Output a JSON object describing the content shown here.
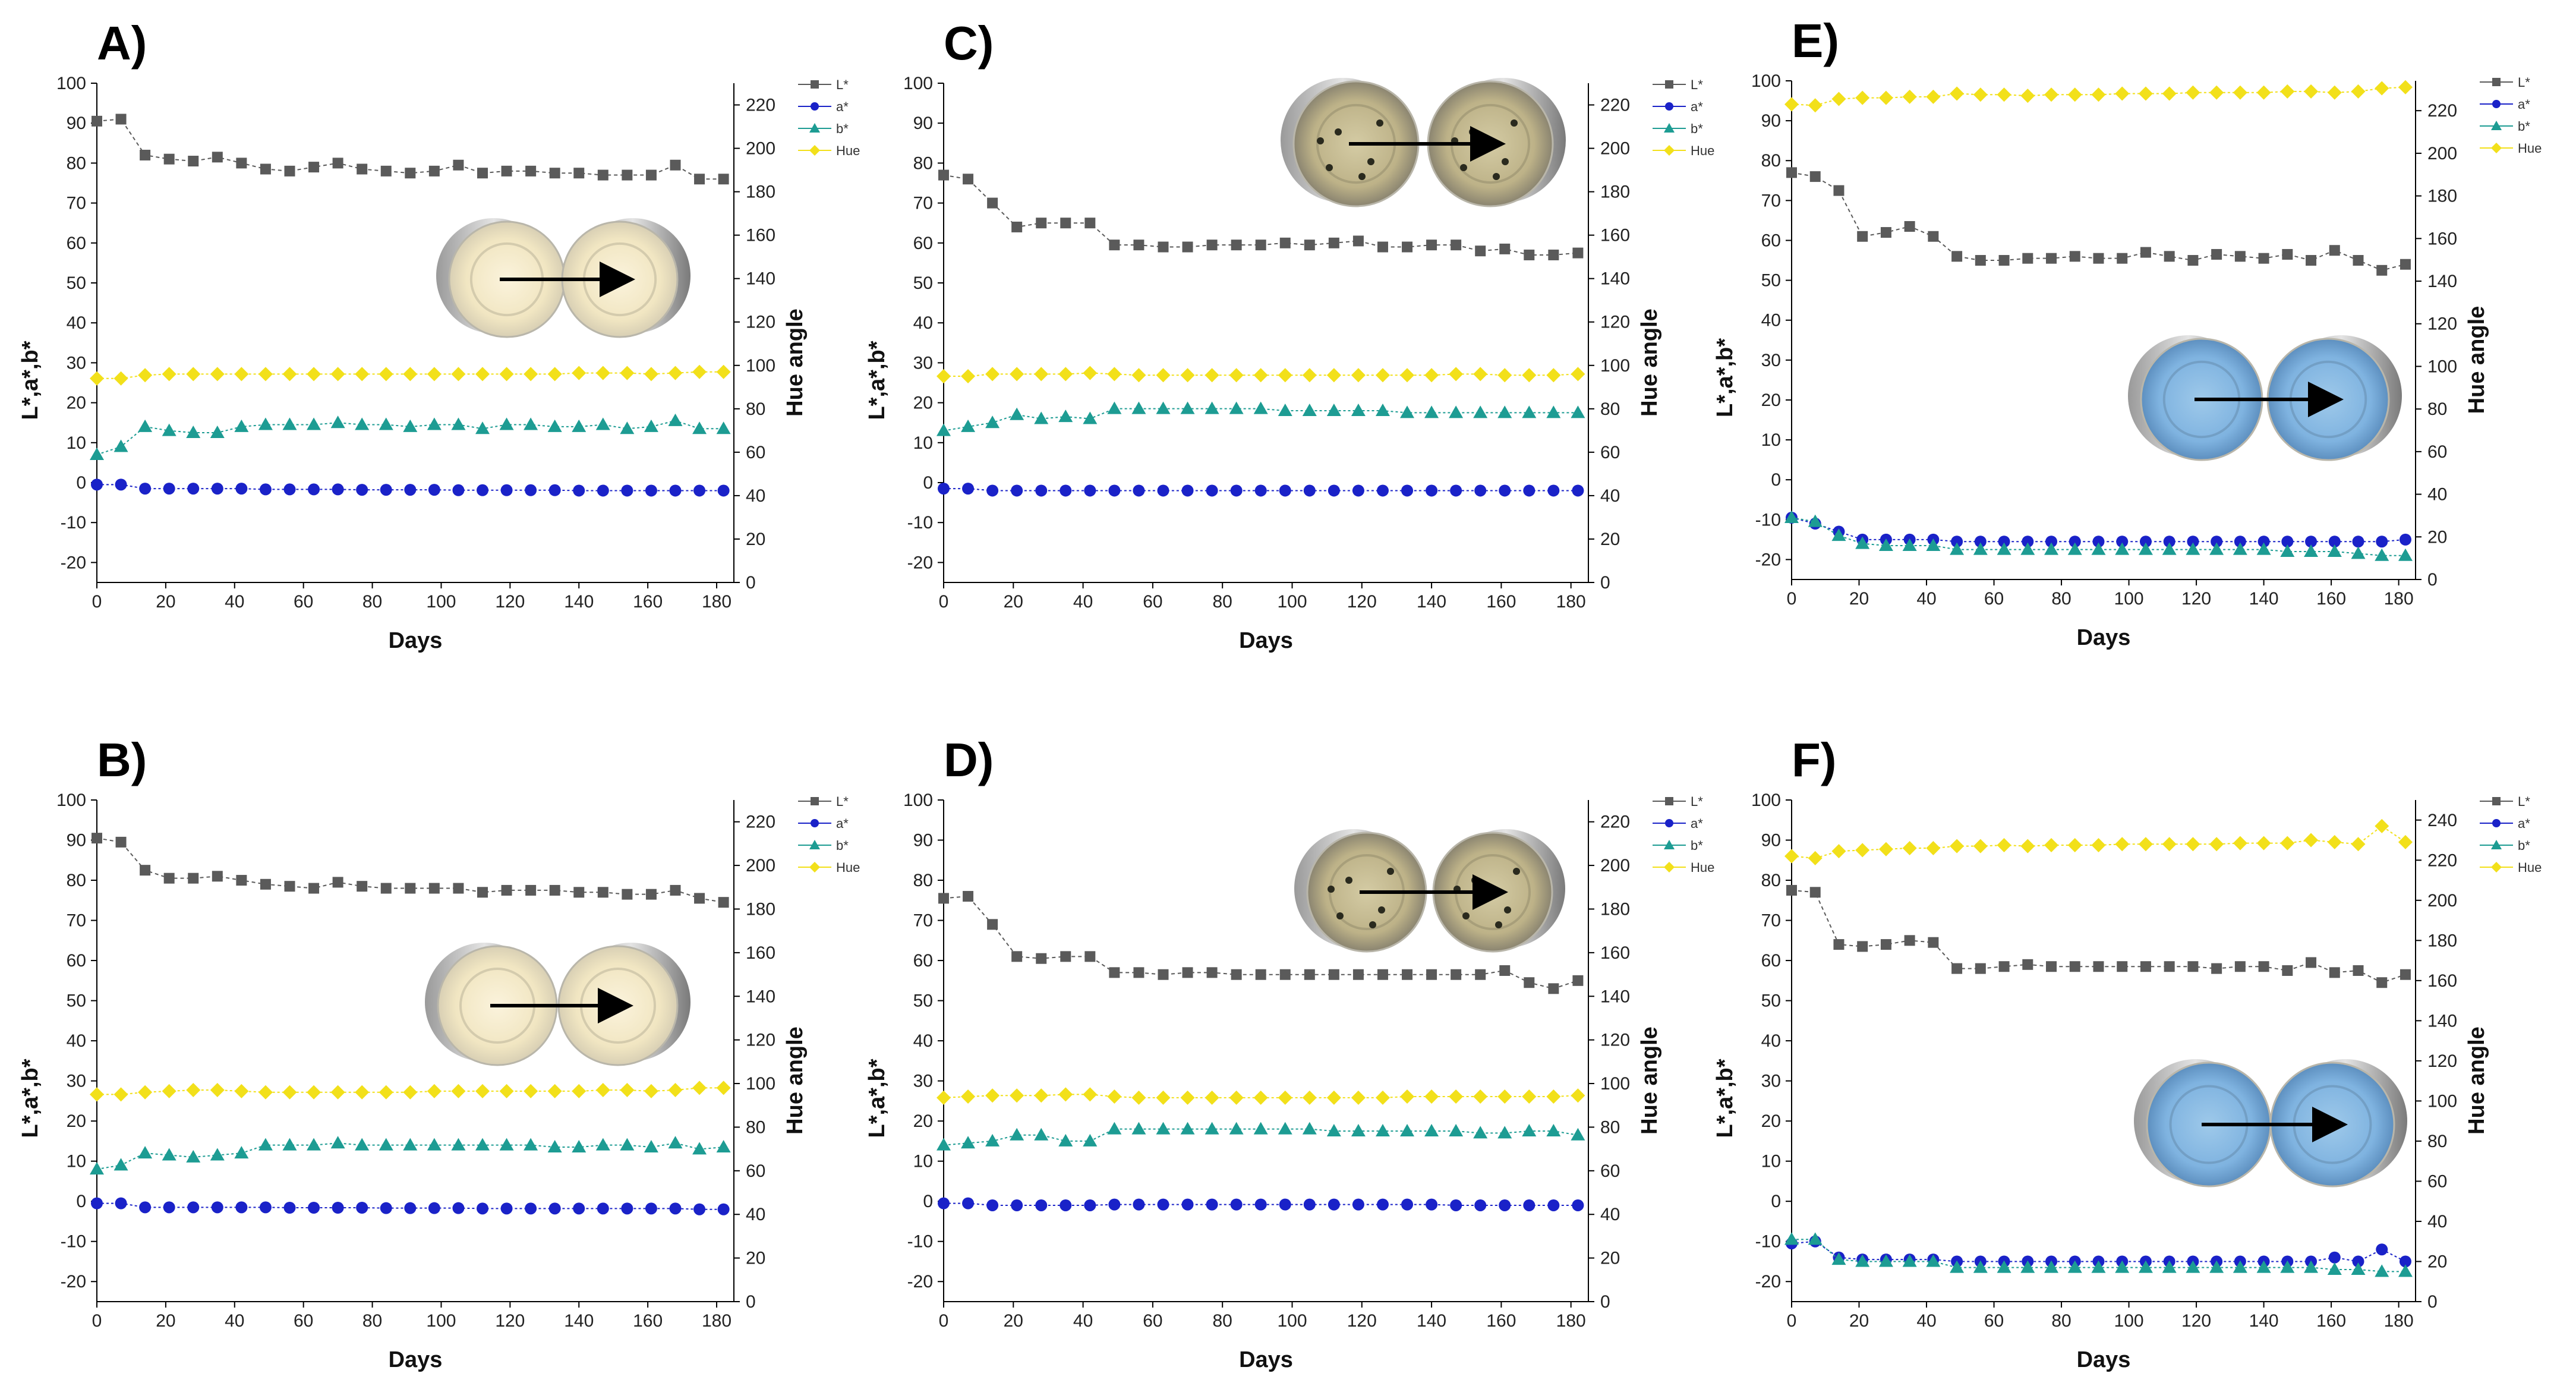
{
  "figure": {
    "legend_labels": [
      "L*",
      "a*",
      "b*",
      "Hue"
    ],
    "series_colors": {
      "L*": "#5a5a5a",
      "a*": "#1a22c8",
      "b*": "#1d9c93",
      "Hue": "#f2e01a"
    },
    "days": [
      0,
      7,
      14,
      21,
      28,
      35,
      42,
      49,
      56,
      63,
      70,
      77,
      84,
      91,
      98,
      105,
      112,
      119,
      126,
      133,
      140,
      147,
      154,
      161,
      168,
      175,
      182
    ]
  },
  "chart_data": [
    {
      "type": "line",
      "panel": "A)",
      "xlabel": "Days",
      "ylabel": "L*,a*,b*",
      "y2label": "Hue angle",
      "xlim": [
        0,
        185
      ],
      "xticks": [
        0,
        20,
        40,
        60,
        80,
        100,
        120,
        140,
        160,
        180
      ],
      "ylim": [
        -25,
        100
      ],
      "yticks": [
        -20,
        -10,
        0,
        10,
        20,
        30,
        40,
        50,
        60,
        70,
        80,
        90,
        100
      ],
      "y2lim": [
        0,
        230
      ],
      "y2ticks": [
        0,
        20,
        40,
        60,
        80,
        100,
        120,
        140,
        160,
        180,
        200,
        220
      ],
      "photo": "cream",
      "series": [
        {
          "name": "L*",
          "axis": "left",
          "values": [
            90.5,
            91,
            82,
            81,
            80.5,
            81.5,
            80,
            78.5,
            78,
            79,
            80,
            78.5,
            78,
            77.5,
            78,
            79.5,
            77.5,
            78,
            78,
            77.5,
            77.5,
            77,
            77,
            77,
            79.5,
            76,
            76
          ]
        },
        {
          "name": "a*",
          "axis": "left",
          "values": [
            -0.5,
            -0.5,
            -1.5,
            -1.5,
            -1.5,
            -1.5,
            -1.5,
            -1.7,
            -1.7,
            -1.7,
            -1.7,
            -1.8,
            -1.8,
            -1.8,
            -1.8,
            -1.9,
            -1.9,
            -1.9,
            -1.9,
            -1.9,
            -2,
            -2,
            -2,
            -2,
            -2,
            -2,
            -2
          ]
        },
        {
          "name": "b*",
          "axis": "left",
          "values": [
            7,
            9,
            14,
            13,
            12.5,
            12.5,
            14,
            14.5,
            14.5,
            14.5,
            15,
            14.5,
            14.5,
            14,
            14.5,
            14.5,
            13.5,
            14.5,
            14.5,
            14,
            14,
            14.5,
            13.5,
            14,
            15.5,
            13.5,
            13.5
          ]
        },
        {
          "name": "Hue",
          "axis": "right",
          "values": [
            94,
            94,
            95.5,
            96,
            96,
            96,
            96,
            96,
            96,
            96,
            96,
            96,
            96,
            96,
            96,
            96,
            96,
            96,
            96,
            96,
            96.5,
            96.5,
            96.5,
            96,
            96.5,
            97,
            97
          ]
        }
      ]
    },
    {
      "type": "line",
      "panel": "B)",
      "xlabel": "Days",
      "ylabel": "L*,a*,b*",
      "y2label": "Hue angle",
      "xlim": [
        0,
        185
      ],
      "xticks": [
        0,
        20,
        40,
        60,
        80,
        100,
        120,
        140,
        160,
        180
      ],
      "ylim": [
        -25,
        100
      ],
      "yticks": [
        -20,
        -10,
        0,
        10,
        20,
        30,
        40,
        50,
        60,
        70,
        80,
        90,
        100
      ],
      "y2lim": [
        0,
        230
      ],
      "y2ticks": [
        0,
        20,
        40,
        60,
        80,
        100,
        120,
        140,
        160,
        180,
        200,
        220
      ],
      "photo": "cream",
      "series": [
        {
          "name": "L*",
          "axis": "left",
          "values": [
            90.5,
            89.5,
            82.5,
            80.5,
            80.5,
            81,
            80,
            79,
            78.5,
            78,
            79.5,
            78.5,
            78,
            78,
            78,
            78,
            77,
            77.5,
            77.5,
            77.5,
            77,
            77,
            76.5,
            76.5,
            77.5,
            75.5,
            74.5
          ]
        },
        {
          "name": "a*",
          "axis": "left",
          "values": [
            -0.5,
            -0.5,
            -1.5,
            -1.5,
            -1.5,
            -1.5,
            -1.5,
            -1.5,
            -1.6,
            -1.6,
            -1.6,
            -1.6,
            -1.7,
            -1.7,
            -1.7,
            -1.7,
            -1.8,
            -1.8,
            -1.8,
            -1.8,
            -1.8,
            -1.8,
            -1.8,
            -1.8,
            -1.8,
            -2,
            -2
          ]
        },
        {
          "name": "b*",
          "axis": "left",
          "values": [
            8,
            9,
            12,
            11.5,
            11,
            11.5,
            12,
            14,
            14,
            14,
            14.5,
            14,
            14,
            14,
            14,
            14,
            14,
            14,
            14,
            13.5,
            13.5,
            14,
            14,
            13.5,
            14.5,
            13,
            13.5
          ]
        },
        {
          "name": "Hue",
          "axis": "right",
          "values": [
            95,
            95,
            96,
            96.5,
            97,
            97,
            96.5,
            96,
            96,
            96,
            96,
            96,
            96,
            96,
            96.5,
            96.5,
            96.5,
            96.5,
            96.5,
            96.5,
            96.5,
            97,
            97,
            96.5,
            97,
            98,
            98
          ]
        }
      ]
    },
    {
      "type": "line",
      "panel": "C)",
      "xlabel": "Days",
      "ylabel": "L*,a*,b*",
      "y2label": "Hue angle",
      "xlim": [
        0,
        185
      ],
      "xticks": [
        0,
        20,
        40,
        60,
        80,
        100,
        120,
        140,
        160,
        180
      ],
      "ylim": [
        -25,
        100
      ],
      "yticks": [
        -20,
        -10,
        0,
        10,
        20,
        30,
        40,
        50,
        60,
        70,
        80,
        90,
        100
      ],
      "y2lim": [
        0,
        230
      ],
      "y2ticks": [
        0,
        20,
        40,
        60,
        80,
        100,
        120,
        140,
        160,
        180,
        200,
        220
      ],
      "photo": "dotted",
      "series": [
        {
          "name": "L*",
          "axis": "left",
          "values": [
            77,
            76,
            70,
            64,
            65,
            65,
            65,
            59.5,
            59.5,
            59,
            59,
            59.5,
            59.5,
            59.5,
            60,
            59.5,
            60,
            60.5,
            59,
            59,
            59.5,
            59.5,
            58,
            58.5,
            57,
            57,
            57.5
          ]
        },
        {
          "name": "a*",
          "axis": "left",
          "values": [
            -1.5,
            -1.5,
            -2,
            -2,
            -2,
            -2,
            -2,
            -2,
            -2,
            -2,
            -2,
            -2,
            -2,
            -2,
            -2,
            -2,
            -2,
            -2,
            -2,
            -2,
            -2,
            -2,
            -2,
            -2,
            -2,
            -2,
            -2
          ]
        },
        {
          "name": "b*",
          "axis": "left",
          "values": [
            13,
            14,
            15,
            17,
            16,
            16.5,
            16,
            18.5,
            18.5,
            18.5,
            18.5,
            18.5,
            18.5,
            18.5,
            18,
            18,
            18,
            18,
            18,
            17.5,
            17.5,
            17.5,
            17.5,
            17.5,
            17.5,
            17.5,
            17.5
          ]
        },
        {
          "name": "Hue",
          "axis": "right",
          "values": [
            95,
            95,
            96,
            96,
            96,
            96,
            96.5,
            96,
            95.5,
            95.5,
            95.5,
            95.5,
            95.5,
            95.5,
            95.5,
            95.5,
            95.5,
            95.5,
            95.5,
            95.5,
            95.5,
            96,
            96,
            95.5,
            95.5,
            95.5,
            96
          ]
        }
      ]
    },
    {
      "type": "line",
      "panel": "D)",
      "xlabel": "Days",
      "ylabel": "L*,a*,b*",
      "y2label": "Hue angle",
      "xlim": [
        0,
        185
      ],
      "xticks": [
        0,
        20,
        40,
        60,
        80,
        100,
        120,
        140,
        160,
        180
      ],
      "ylim": [
        -25,
        100
      ],
      "yticks": [
        -20,
        -10,
        0,
        10,
        20,
        30,
        40,
        50,
        60,
        70,
        80,
        90,
        100
      ],
      "y2lim": [
        0,
        230
      ],
      "y2ticks": [
        0,
        20,
        40,
        60,
        80,
        100,
        120,
        140,
        160,
        180,
        200,
        220
      ],
      "photo": "dotted",
      "series": [
        {
          "name": "L*",
          "axis": "left",
          "values": [
            75.5,
            76,
            69,
            61,
            60.5,
            61,
            61,
            57,
            57,
            56.5,
            57,
            57,
            56.5,
            56.5,
            56.5,
            56.5,
            56.5,
            56.5,
            56.5,
            56.5,
            56.5,
            56.5,
            56.5,
            57.5,
            54.5,
            53,
            55
          ]
        },
        {
          "name": "a*",
          "axis": "left",
          "values": [
            -0.5,
            -0.5,
            -1,
            -1,
            -1,
            -1,
            -1,
            -0.8,
            -0.8,
            -0.8,
            -0.8,
            -0.8,
            -0.8,
            -0.8,
            -0.8,
            -0.8,
            -0.8,
            -0.8,
            -0.8,
            -0.8,
            -0.8,
            -1,
            -1,
            -1,
            -1,
            -1,
            -1
          ]
        },
        {
          "name": "b*",
          "axis": "left",
          "values": [
            14,
            14.5,
            15,
            16.5,
            16.5,
            15,
            15,
            18,
            18,
            18,
            18,
            18,
            18,
            18,
            18,
            18,
            17.5,
            17.5,
            17.5,
            17.5,
            17.5,
            17.5,
            17,
            17,
            17.5,
            17.5,
            16.5
          ]
        },
        {
          "name": "Hue",
          "axis": "right",
          "values": [
            93.5,
            94,
            94.5,
            94.5,
            94.5,
            95,
            95,
            94,
            93.5,
            93.5,
            93.5,
            93.5,
            93.5,
            93.5,
            93.5,
            93.5,
            93.5,
            93.5,
            93.5,
            94,
            94,
            94,
            94,
            94,
            94,
            94,
            94.5
          ]
        }
      ]
    },
    {
      "type": "line",
      "panel": "E)",
      "xlabel": "Days",
      "ylabel": "L*,a*,b*",
      "y2label": "Hue angle",
      "xlim": [
        0,
        185
      ],
      "xticks": [
        0,
        20,
        40,
        60,
        80,
        100,
        120,
        140,
        160,
        180
      ],
      "ylim": [
        -25,
        100
      ],
      "yticks": [
        -20,
        -10,
        0,
        10,
        20,
        30,
        40,
        50,
        60,
        70,
        80,
        90,
        100
      ],
      "y2lim": [
        0,
        234
      ],
      "y2ticks": [
        0,
        20,
        40,
        60,
        80,
        100,
        120,
        140,
        160,
        180,
        200,
        220
      ],
      "photo": "blue",
      "series": [
        {
          "name": "L*",
          "axis": "left",
          "values": [
            77,
            76,
            72.5,
            61,
            62,
            63.5,
            61,
            56,
            55,
            55,
            55.5,
            55.5,
            56,
            55.5,
            55.5,
            57,
            56,
            55,
            56.5,
            56,
            55.5,
            56.5,
            55,
            57.5,
            55,
            52.5,
            54
          ]
        },
        {
          "name": "a*",
          "axis": "left",
          "values": [
            -9.5,
            -11,
            -13,
            -15,
            -15,
            -15,
            -15,
            -15.5,
            -15.5,
            -15.5,
            -15.5,
            -15.5,
            -15.5,
            -15.5,
            -15.5,
            -15.5,
            -15.5,
            -15.5,
            -15.5,
            -15.5,
            -15.5,
            -15.5,
            -15.5,
            -15.5,
            -15.5,
            -15.5,
            -15
          ]
        },
        {
          "name": "b*",
          "axis": "left",
          "values": [
            -9.5,
            -10.5,
            -14,
            -16,
            -16.5,
            -16.5,
            -16.5,
            -17.5,
            -17.5,
            -17.5,
            -17.5,
            -17.5,
            -17.5,
            -17.5,
            -17.5,
            -17.5,
            -17.5,
            -17.5,
            -17.5,
            -17.5,
            -17.5,
            -18,
            -18,
            -18,
            -18.5,
            -19,
            -19
          ]
        },
        {
          "name": "Hue",
          "axis": "right",
          "values": [
            223,
            222.5,
            225.5,
            226,
            226,
            226.5,
            226.5,
            228,
            227.5,
            227.5,
            227,
            227.5,
            227.5,
            227.5,
            228,
            228,
            228,
            228.5,
            228.5,
            228.5,
            228.5,
            229,
            229,
            228.5,
            229,
            230.5,
            231
          ]
        }
      ]
    },
    {
      "type": "line",
      "panel": "F)",
      "xlabel": "Days",
      "ylabel": "L*,a*,b*",
      "y2label": "Hue angle",
      "xlim": [
        0,
        185
      ],
      "xticks": [
        0,
        20,
        40,
        60,
        80,
        100,
        120,
        140,
        160,
        180
      ],
      "ylim": [
        -25,
        100
      ],
      "yticks": [
        -20,
        -10,
        0,
        10,
        20,
        30,
        40,
        50,
        60,
        70,
        80,
        90,
        100
      ],
      "y2lim": [
        0,
        250
      ],
      "y2ticks": [
        0,
        20,
        40,
        60,
        80,
        100,
        120,
        140,
        160,
        180,
        200,
        220,
        240
      ],
      "photo": "blue",
      "series": [
        {
          "name": "L*",
          "axis": "left",
          "values": [
            77.5,
            77,
            64,
            63.5,
            64,
            65,
            64.5,
            58,
            58,
            58.5,
            59,
            58.5,
            58.5,
            58.5,
            58.5,
            58.5,
            58.5,
            58.5,
            58,
            58.5,
            58.5,
            57.5,
            59.5,
            57,
            57.5,
            54.5,
            56.5
          ]
        },
        {
          "name": "a*",
          "axis": "left",
          "values": [
            -10.5,
            -10,
            -14,
            -14.5,
            -14.5,
            -14.5,
            -14.5,
            -15,
            -15,
            -15,
            -15,
            -15,
            -15,
            -15,
            -15,
            -15,
            -15,
            -15,
            -15,
            -15,
            -15,
            -15,
            -15,
            -14,
            -15,
            -12,
            -15
          ]
        },
        {
          "name": "b*",
          "axis": "left",
          "values": [
            -9.5,
            -9.5,
            -14.5,
            -15,
            -15,
            -15,
            -15,
            -16.5,
            -16.5,
            -16.5,
            -16.5,
            -16.5,
            -16.5,
            -16.5,
            -16.5,
            -16.5,
            -16.5,
            -16.5,
            -16.5,
            -16.5,
            -16.5,
            -16.5,
            -16.5,
            -17,
            -17,
            -17.5,
            -17.5
          ]
        },
        {
          "name": "Hue",
          "axis": "right",
          "values": [
            222,
            221,
            224.5,
            225,
            225.5,
            226,
            226,
            227,
            227,
            227.5,
            227,
            227.5,
            227.5,
            227.5,
            228,
            228,
            228,
            228,
            228,
            228.5,
            228.5,
            228.5,
            230,
            229,
            228,
            237,
            229
          ]
        }
      ]
    }
  ]
}
